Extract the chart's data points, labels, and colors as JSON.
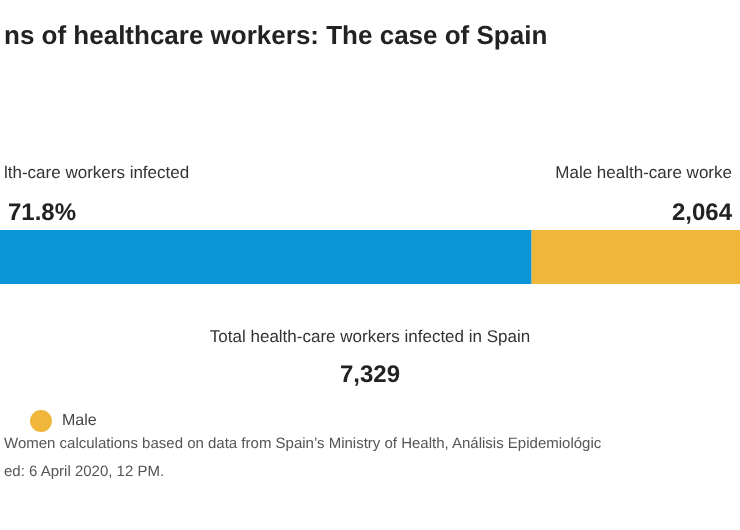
{
  "chart_data": {
    "type": "bar",
    "orientation": "horizontal",
    "stacked": true,
    "title": "ns of healthcare workers: The case of Spain",
    "categories": [
      null
    ],
    "series": [
      {
        "color": "#0a96d6",
        "values": [
          5265
        ]
      },
      {
        "name": "Male",
        "color": "#f0b63a",
        "values": [
          2064
        ],
        "value_labels": [
          "2,064"
        ]
      }
    ],
    "legend": "bottom left",
    "annotations": [
      "lth-care workers infected",
      "71.8%",
      "Male health-care worke",
      "Total health-care workers infected in Spain",
      "7,329",
      "Women calculations based on data from Spain’s Ministry of Health, Análisis Epidemiológic",
      "ed: 6 April 2020, 12 PM."
    ]
  }
}
